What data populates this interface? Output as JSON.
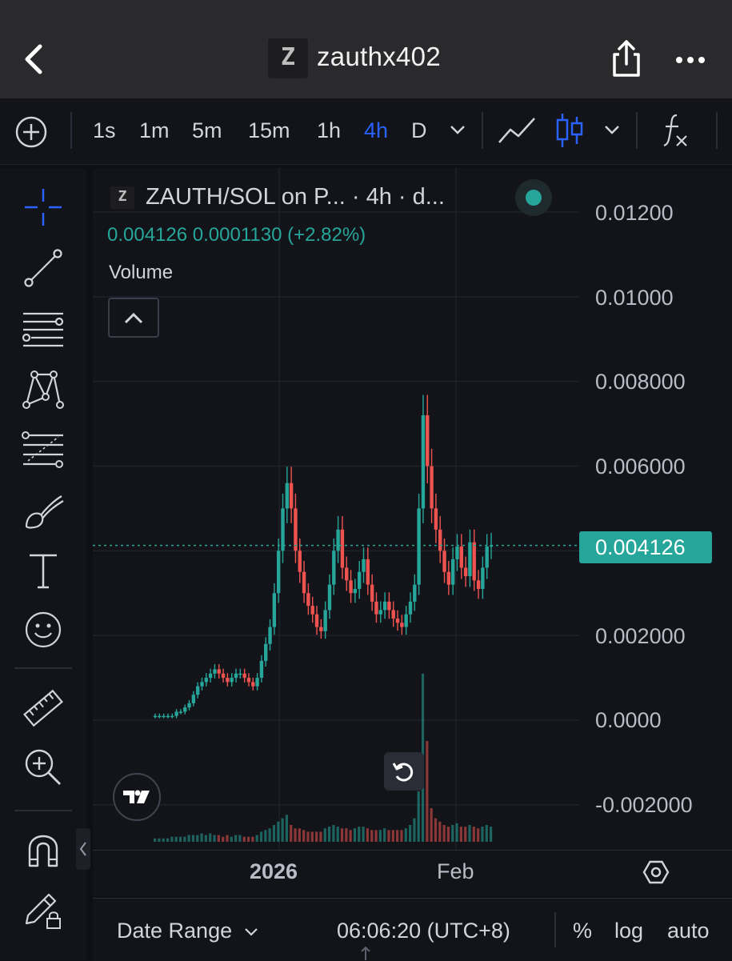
{
  "appbar": {
    "title": "zauthx402",
    "logo_letter": "Z",
    "icons": [
      "back-chevron-icon",
      "share-icon",
      "more-dots-icon"
    ]
  },
  "toolbar": {
    "add_icon": "plus-circle-icon",
    "timeframes": [
      "1s",
      "1m",
      "5m",
      "15m",
      "1h",
      "4h",
      "D"
    ],
    "active_timeframe": "4h",
    "icons": [
      "chevron-down-icon",
      "line-chart-icon",
      "candles-icon",
      "chevron-down-icon",
      "indicators-fx-icon"
    ]
  },
  "drawing_tools": [
    "crosshair-icon",
    "trend-line-icon",
    "horizontal-lines-icon",
    "pattern-icon",
    "fib-icon",
    "brush-icon",
    "text-icon",
    "emoji-icon",
    "ruler-icon",
    "zoom-in-icon",
    "magnet-icon",
    "lock-drawings-icon"
  ],
  "legend": {
    "logo_letter": "Z",
    "symbol": "ZAUTH/SOL on P... · 4h · d...",
    "last": "0.004126",
    "change": "0.0001130",
    "change_pct": "(+2.82%)",
    "volume_label": "Volume"
  },
  "colors": {
    "up": "#26a69a",
    "down": "#ef5350",
    "accent": "#2962ff",
    "background": "#131419"
  },
  "chart_data": {
    "type": "line",
    "title": "ZAUTH/SOL on P... · 4h · d...",
    "yaxis_ticks": [
      "0.01200",
      "0.01000",
      "0.008000",
      "0.006000",
      "0.002000",
      "0.0000",
      "-0.002000"
    ],
    "xaxis_ticks": [
      "2026",
      "Feb"
    ],
    "ylim": [
      -0.0025,
      0.0128
    ],
    "last_price": 0.004126,
    "series": [
      {
        "values": [
          0.0001,
          0.0001,
          0.0001,
          0.0001,
          0.0001,
          0.0002,
          0.0002,
          0.0003,
          0.0004,
          0.0006,
          0.0008,
          0.0009,
          0.001,
          0.0011,
          0.0012,
          0.0011,
          0.001,
          0.0009,
          0.001,
          0.0011,
          0.0011,
          0.001,
          0.0009,
          0.0008,
          0.001,
          0.0014,
          0.0018,
          0.0022,
          0.003,
          0.004,
          0.005,
          0.0056,
          0.005,
          0.004,
          0.0035,
          0.003,
          0.0027,
          0.0025,
          0.0022,
          0.0021,
          0.0026,
          0.0032,
          0.004,
          0.0045,
          0.0036,
          0.0033,
          0.003,
          0.0031,
          0.0035,
          0.0038,
          0.0032,
          0.0028,
          0.0025,
          0.0026,
          0.0028,
          0.0026,
          0.0024,
          0.0023,
          0.0022,
          0.0025,
          0.0028,
          0.0032,
          0.005,
          0.0072,
          0.006,
          0.005,
          0.0045,
          0.004,
          0.0035,
          0.0032,
          0.0038,
          0.0041,
          0.0036,
          0.0034,
          0.0042,
          0.0033,
          0.0031,
          0.0036,
          0.0041,
          0.004126
        ]
      }
    ],
    "volume": [
      2,
      2,
      2,
      2,
      3,
      3,
      3,
      3,
      4,
      4,
      4,
      5,
      4,
      5,
      4,
      4,
      3,
      4,
      3,
      4,
      4,
      3,
      3,
      3,
      4,
      6,
      7,
      8,
      10,
      12,
      14,
      16,
      10,
      8,
      8,
      7,
      6,
      6,
      6,
      6,
      8,
      9,
      10,
      9,
      8,
      8,
      7,
      8,
      9,
      9,
      8,
      7,
      7,
      7,
      8,
      7,
      7,
      7,
      7,
      8,
      10,
      14,
      30,
      100,
      60,
      20,
      14,
      12,
      10,
      9,
      10,
      11,
      9,
      9,
      10,
      9,
      8,
      9,
      10,
      9
    ]
  },
  "xaxis": {
    "year_label": "2026",
    "month_label": "Feb",
    "settings_icon": "hexagon-gear-icon"
  },
  "bottombar": {
    "date_range": "Date Range",
    "clock": "06:06:20 (UTC+8)",
    "options": [
      "%",
      "log",
      "auto"
    ]
  }
}
